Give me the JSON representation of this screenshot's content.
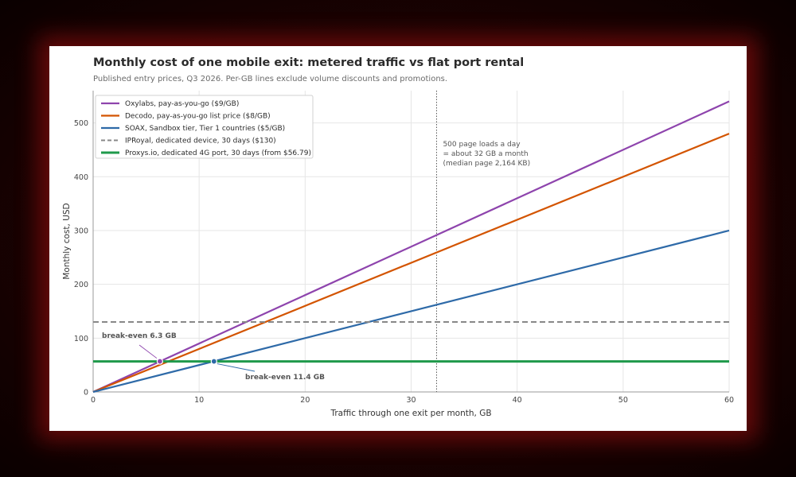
{
  "chart_data": {
    "type": "line",
    "title": "Monthly cost of one mobile exit: metered traffic vs flat port rental",
    "subtitle": "Published entry prices, Q3 2026. Per-GB lines exclude volume discounts and promotions.",
    "xlabel": "Traffic through one exit per month, GB",
    "ylabel": "Monthly cost, USD",
    "xlim": [
      0,
      60
    ],
    "ylim": [
      0,
      560
    ],
    "xticks": [
      0,
      10,
      20,
      30,
      40,
      50,
      60
    ],
    "yticks": [
      0,
      100,
      200,
      300,
      400,
      500
    ],
    "grid": true,
    "legend_position": "top-left",
    "series": [
      {
        "name": "Oxylabs, pay-as-you-go ($9/GB)",
        "color": "#8e44ad",
        "style": "solid",
        "x": [
          0,
          60
        ],
        "y": [
          0,
          540
        ]
      },
      {
        "name": "Decodo, pay-as-you-go list price ($8/GB)",
        "color": "#d35400",
        "style": "solid",
        "x": [
          0,
          60
        ],
        "y": [
          0,
          480
        ]
      },
      {
        "name": "SOAX, Sandbox tier, Tier 1 countries ($5/GB)",
        "color": "#2e6aa8",
        "style": "solid",
        "x": [
          0,
          60
        ],
        "y": [
          0,
          300
        ]
      },
      {
        "name": "IPRoyal, dedicated device, 30 days ($130)",
        "color": "#888888",
        "style": "dashed",
        "x": [
          0,
          60
        ],
        "y": [
          130,
          130
        ]
      },
      {
        "name": "Proxys.io, dedicated 4G port, 30 days (from $56.79)",
        "color": "#1f9a4b",
        "style": "solid-thick",
        "x": [
          0,
          60
        ],
        "y": [
          56.79,
          56.79
        ]
      }
    ],
    "annotations": [
      {
        "type": "vline",
        "x": 32.4,
        "lines": [
          "500 page loads a day",
          "= about 32 GB a month",
          "(median page 2,164 KB)"
        ]
      },
      {
        "type": "point",
        "x": 6.3,
        "y": 56.79,
        "color": "#8e44ad",
        "label": "break-even 6.3 GB"
      },
      {
        "type": "point",
        "x": 11.4,
        "y": 56.79,
        "color": "#2e6aa8",
        "label": "break-even 11.4 GB"
      }
    ]
  }
}
